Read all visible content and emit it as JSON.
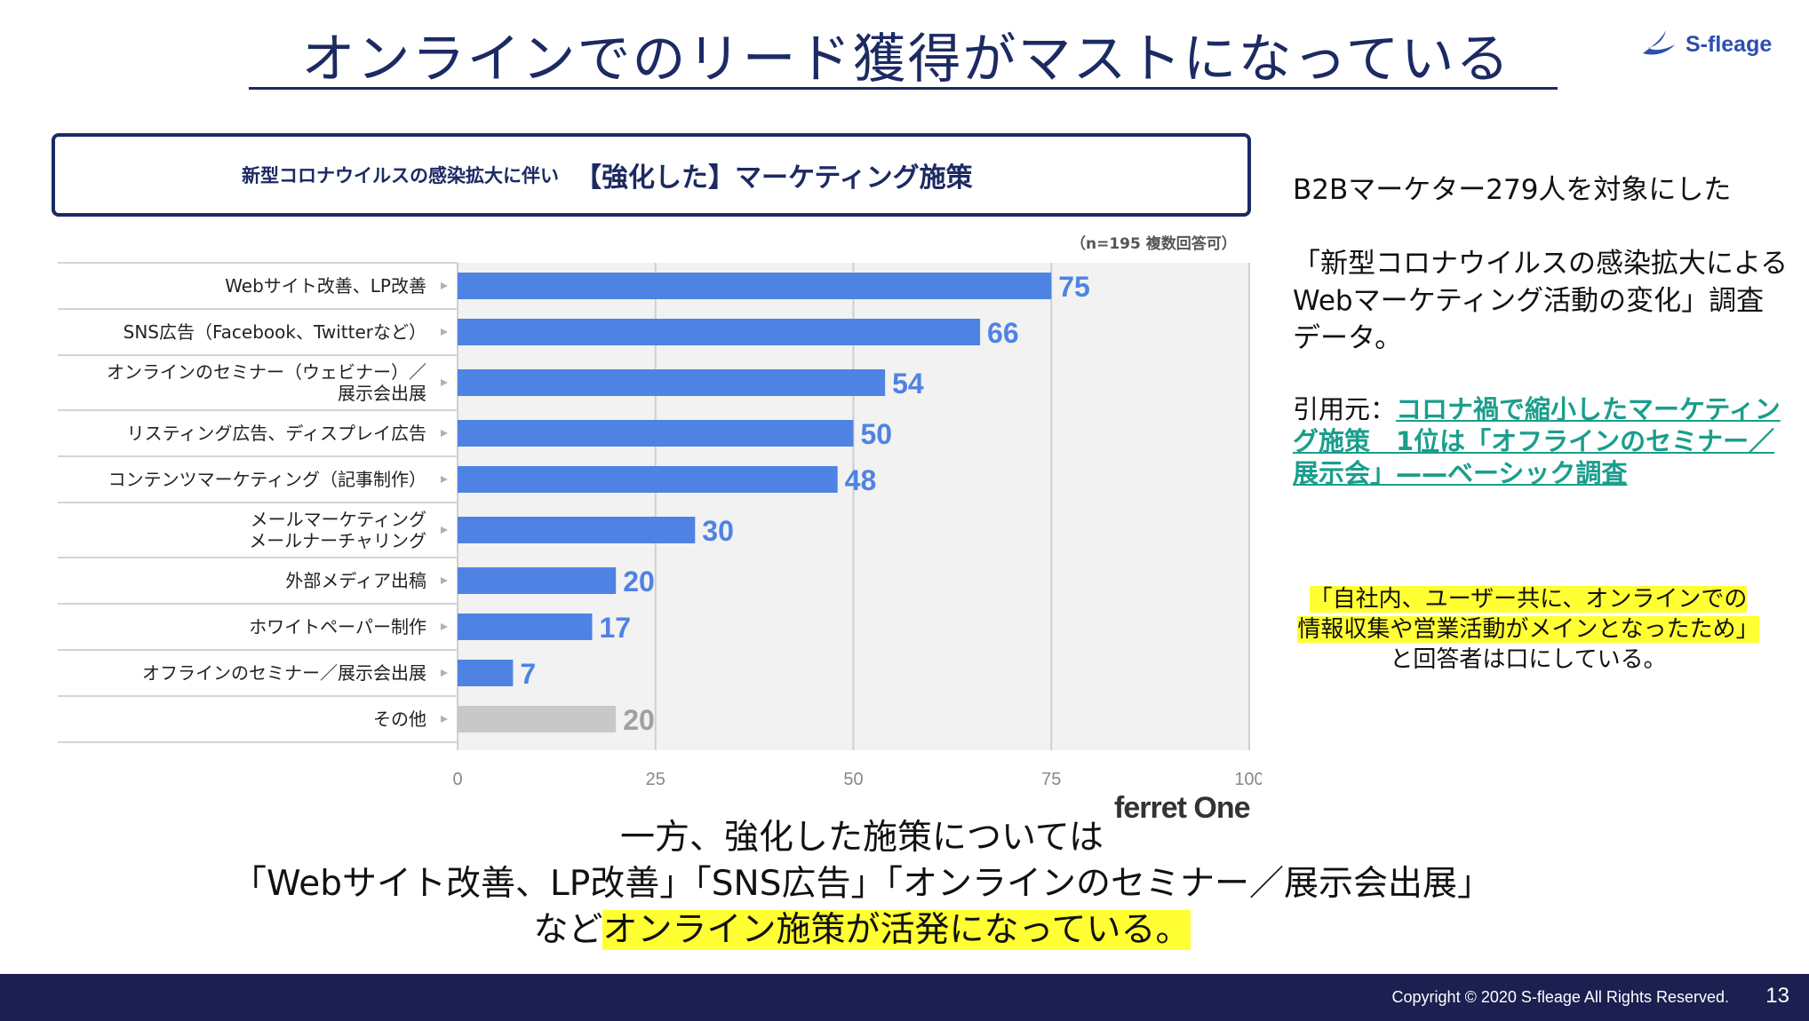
{
  "header": {
    "title": "オンラインでのリード獲得がマストになっている",
    "logo_text": "S-fleage"
  },
  "chart_banner": {
    "lead": "新型コロナウイルスの感染拡大に伴い",
    "main": "【強化した】マーケティング施策"
  },
  "chart_data": {
    "type": "bar",
    "orientation": "horizontal",
    "note": "（n=195 複数回答可）",
    "categories": [
      [
        "Webサイト改善、LP改善"
      ],
      [
        "SNS広告（Facebook、Twitterなど）"
      ],
      [
        "オンラインのセミナー（ウェビナー）／",
        "展示会出展"
      ],
      [
        "リスティング広告、ディスプレイ広告"
      ],
      [
        "コンテンツマーケティング（記事制作）"
      ],
      [
        "メールマーケティング",
        "メールナーチャリング"
      ],
      [
        "外部メディア出稿"
      ],
      [
        "ホワイトペーパー制作"
      ],
      [
        "オフラインのセミナー／展示会出展"
      ],
      [
        "その他"
      ]
    ],
    "values": [
      75,
      66,
      54,
      50,
      48,
      30,
      20,
      17,
      7,
      20
    ],
    "bar_color": "#4f83e3",
    "other_color": "#c8c8c8",
    "label_color": "#4f83e3",
    "other_label_color": "#a0a0a0",
    "xlim": [
      0,
      100
    ],
    "xticks": [
      "0",
      "25",
      "50",
      "75",
      "100"
    ],
    "grid": true,
    "source_brand": "ferret One"
  },
  "side": {
    "line1": "B2Bマーケター279人を対象にした",
    "line2": "「新型コロナウイルスの感染拡大によるWebマーケティング活動の変化」調査データ。",
    "cite_prefix": "引用元：",
    "cite_link": "コロナ禍で縮小したマーケティング施策　1位は「オフラインのセミナー／展示会」——ベーシック調査",
    "quote_hl1": "「自社内、ユーザー共に、オンラインでの",
    "quote_hl2": "情報収集や営業活動がメインとなったため」",
    "quote_tail": "と回答者は口にしている。"
  },
  "bottom": {
    "line1": "一方、強化した施策については",
    "line2": "「Webサイト改善、LP改善」「SNS広告」「オンラインのセミナー／展示会出展」",
    "line3_plain": "など",
    "line3_hl": "オンライン施策が活発になっている。"
  },
  "footer": {
    "copyright": "Copyright © 2020 S-fleage All Rights Reserved.",
    "page": "13"
  },
  "colors": {
    "navy": "#1c2a63",
    "footer_bg": "#1b2050",
    "highlight": "#ffff33",
    "link": "#1a9e8c"
  }
}
